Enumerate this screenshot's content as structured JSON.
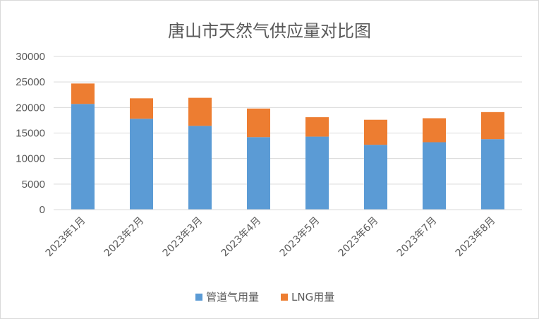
{
  "chart_data": {
    "type": "bar",
    "stacked": true,
    "title": "唐山市天然气供应量对比图",
    "xlabel": "",
    "ylabel": "",
    "ylim": [
      0,
      30000
    ],
    "yticks": [
      0,
      5000,
      10000,
      15000,
      20000,
      25000,
      30000
    ],
    "grid": true,
    "legend_position": "bottom",
    "categories": [
      "2023年1月",
      "2023年2月",
      "2023年3月",
      "2023年4月",
      "2023年5月",
      "2023年6月",
      "2023年7月",
      "2023年8月"
    ],
    "series": [
      {
        "name": "管道气用量",
        "color": "#5b9bd5",
        "values": [
          20700,
          17800,
          16400,
          14200,
          14300,
          12700,
          13200,
          13800
        ]
      },
      {
        "name": "LNG用量",
        "color": "#ed7d31",
        "values": [
          4000,
          4000,
          5500,
          5600,
          3800,
          4900,
          4700,
          5300
        ]
      }
    ]
  }
}
